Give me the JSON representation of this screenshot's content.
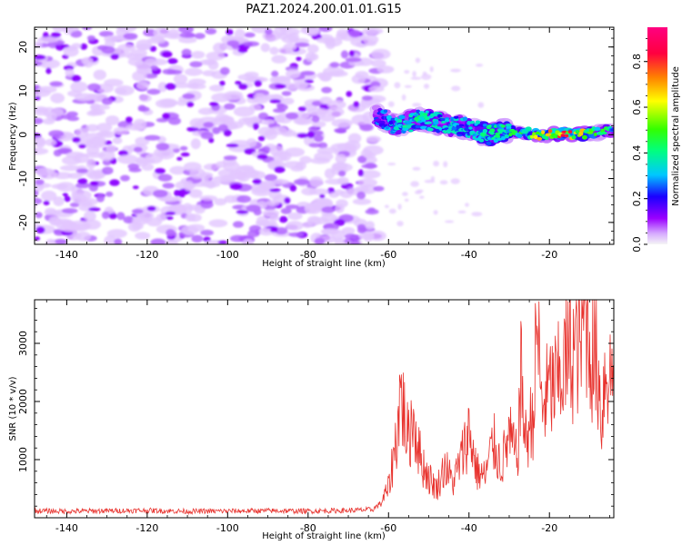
{
  "page": {
    "title": "PAZ1.2024.200.01.01.G15"
  },
  "colors": {
    "snr_line": "#e8332e",
    "spectrum_low": "#d9b3ff",
    "spectrum_mid": "#8800ff",
    "colorbar_stops": [
      "#f5f5f5",
      "#d6aaff",
      "#9a00ff",
      "#1a00ff",
      "#00c8ff",
      "#00ff80",
      "#33ff00",
      "#ffff00",
      "#ff8000",
      "#ff0040",
      "#ff0080"
    ]
  },
  "chart_data": [
    {
      "type": "heatmap",
      "title": "PAZ1.2024.200.01.01.G15",
      "xlabel": "Height of straight line (km)",
      "ylabel": "Frequency (Hz)",
      "xlim": [
        -148,
        -4
      ],
      "ylim": [
        -25,
        24.5
      ],
      "x_ticks": [
        -140,
        -120,
        -100,
        -80,
        -60,
        -40,
        -20
      ],
      "y_ticks": [
        -20,
        -10,
        0,
        10,
        20
      ],
      "colorbar": {
        "label": "Normalized spectral amplitude",
        "range": [
          0,
          0.95
        ],
        "ticks": [
          0.0,
          0.2,
          0.4,
          0.6,
          0.8
        ]
      },
      "ridge": [
        {
          "x": -63,
          "f": 4.5,
          "amp": 0.35
        },
        {
          "x": -58,
          "f": 2.0,
          "amp": 0.45
        },
        {
          "x": -52,
          "f": 3.5,
          "amp": 0.5
        },
        {
          "x": -46,
          "f": 2.5,
          "amp": 0.45
        },
        {
          "x": -40,
          "f": 1.5,
          "amp": 0.45
        },
        {
          "x": -35,
          "f": 0.0,
          "amp": 0.5
        },
        {
          "x": -30,
          "f": 1.0,
          "amp": 0.55
        },
        {
          "x": -26,
          "f": 0.5,
          "amp": 0.6
        },
        {
          "x": -22,
          "f": 0.0,
          "amp": 0.75
        },
        {
          "x": -17,
          "f": 0.0,
          "amp": 0.9
        },
        {
          "x": -12,
          "f": 0.0,
          "amp": 0.8
        },
        {
          "x": -8,
          "f": 0.5,
          "amp": 0.6
        },
        {
          "x": -5,
          "f": 1.0,
          "amp": 0.5
        }
      ]
    },
    {
      "type": "line",
      "xlabel": "Height of straight line (km)",
      "ylabel": "SNR (10 * v/v)",
      "xlim": [
        -148,
        -4
      ],
      "ylim": [
        0,
        3750
      ],
      "x_ticks": [
        -140,
        -120,
        -100,
        -80,
        -60,
        -40,
        -20
      ],
      "y_ticks": [
        1000,
        2000,
        3000
      ],
      "series": [
        {
          "x": [
            -148,
            -140,
            -130,
            -120,
            -110,
            -100,
            -90,
            -80,
            -70,
            -64,
            -62,
            -60,
            -58,
            -57,
            -56,
            -55,
            -54,
            -52,
            -50,
            -48,
            -46,
            -44,
            -42,
            -40,
            -38,
            -36,
            -34,
            -32,
            -30,
            -28,
            -27,
            -26,
            -24,
            -23,
            -22,
            -20,
            -18,
            -16,
            -14,
            -12,
            -11,
            -10,
            -8,
            -7,
            -6,
            -5,
            -4
          ],
          "y": [
            120,
            110,
            120,
            125,
            110,
            115,
            120,
            115,
            125,
            140,
            250,
            500,
            1400,
            2200,
            1700,
            1300,
            1800,
            1000,
            700,
            500,
            900,
            600,
            1000,
            1500,
            800,
            700,
            1300,
            900,
            1400,
            1000,
            2500,
            1300,
            1800,
            3400,
            1900,
            2200,
            2300,
            2700,
            2900,
            3200,
            3700,
            3000,
            2600,
            1700,
            2700,
            2400,
            2500
          ]
        }
      ]
    }
  ]
}
